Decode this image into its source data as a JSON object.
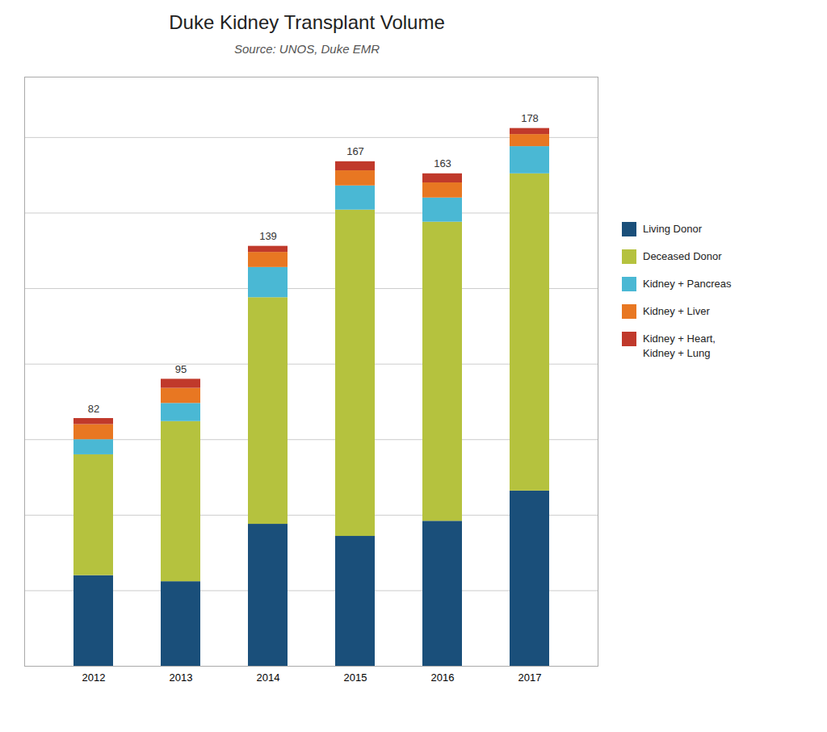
{
  "chart_data": {
    "type": "bar",
    "stacked": true,
    "title": "Duke Kidney Transplant Volume",
    "subtitle": "Source: UNOS, Duke EMR",
    "categories": [
      "2012",
      "2013",
      "2014",
      "2015",
      "2016",
      "2017"
    ],
    "series": [
      {
        "name": "Living Donor",
        "color": "#1a4f7a",
        "values": [
          30,
          28,
          47,
          43,
          48,
          58
        ]
      },
      {
        "name": "Deceased Donor",
        "color": "#b5c23e",
        "values": [
          40,
          53,
          75,
          108,
          99,
          105
        ]
      },
      {
        "name": "Kidney + Pancreas",
        "color": "#4ab8d4",
        "values": [
          5,
          6,
          10,
          8,
          8,
          9
        ]
      },
      {
        "name": "Kidney + Liver",
        "color": "#e87722",
        "values": [
          5,
          5,
          5,
          5,
          5,
          4
        ]
      },
      {
        "name": "Kidney + Heart,\nKidney + Lung",
        "color": "#c0392b",
        "values": [
          2,
          3,
          2,
          3,
          3,
          2
        ]
      }
    ],
    "totals": [
      82,
      95,
      139,
      167,
      163,
      178
    ],
    "ylim": [
      0,
      195
    ],
    "yticks": [
      0,
      25,
      50,
      75,
      100,
      125,
      150,
      175
    ],
    "grid": true,
    "tick_labels": "x",
    "legend": "right"
  }
}
